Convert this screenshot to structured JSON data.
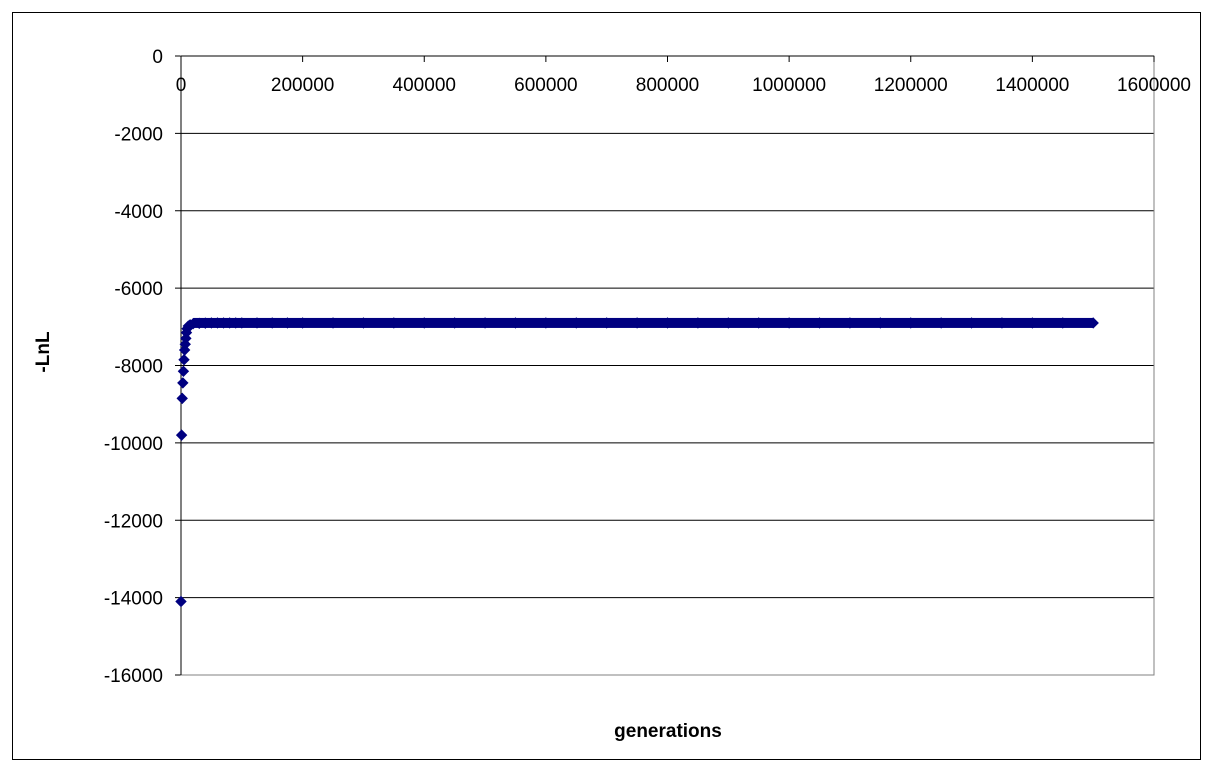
{
  "chart_data": {
    "type": "scatter",
    "title": "",
    "xlabel": "generations",
    "ylabel": "-LnL",
    "xlim": [
      0,
      1600000
    ],
    "ylim": [
      -16000,
      0
    ],
    "x_ticks": [
      0,
      200000,
      400000,
      600000,
      800000,
      1000000,
      1200000,
      1400000,
      1600000
    ],
    "x_tick_labels": [
      "0",
      "200000",
      "400000",
      "600000",
      "800000",
      "1000000",
      "1200000",
      "1400000",
      "1600000"
    ],
    "y_ticks": [
      0,
      -2000,
      -4000,
      -6000,
      -8000,
      -10000,
      -12000,
      -14000,
      -16000
    ],
    "y_tick_labels": [
      "0",
      "-2000",
      "-4000",
      "-6000",
      "-8000",
      "-10000",
      "-12000",
      "-14000",
      "-16000"
    ],
    "x_axis_position": "top",
    "grid": "horizontal",
    "legend": "none",
    "marker": "diamond",
    "marker_color": "#000080",
    "series": [
      {
        "x": [
          0,
          1000,
          2000,
          3000,
          4000,
          5000,
          6000,
          7000,
          8000,
          9000,
          10000,
          12000,
          15000,
          20000,
          30000,
          40000,
          50000,
          60000,
          70000,
          80000,
          90000,
          100000,
          125000,
          150000,
          175000,
          200000,
          250000,
          300000,
          350000,
          400000,
          450000,
          500000,
          550000,
          600000,
          650000,
          700000,
          750000,
          800000,
          850000,
          900000,
          950000,
          1000000,
          1050000,
          1100000,
          1150000,
          1200000,
          1250000,
          1300000,
          1350000,
          1400000,
          1450000,
          1500000
        ],
        "y": [
          -14100,
          -9800,
          -8850,
          -8450,
          -8150,
          -7850,
          -7600,
          -7450,
          -7300,
          -7150,
          -7050,
          -6980,
          -6950,
          -6920,
          -6910,
          -6905,
          -6900,
          -6900,
          -6900,
          -6900,
          -6900,
          -6900,
          -6900,
          -6900,
          -6900,
          -6900,
          -6900,
          -6900,
          -6900,
          -6900,
          -6900,
          -6900,
          -6900,
          -6900,
          -6900,
          -6900,
          -6900,
          -6900,
          -6900,
          -6900,
          -6900,
          -6900,
          -6900,
          -6900,
          -6900,
          -6900,
          -6900,
          -6900,
          -6900,
          -6900,
          -6900,
          -6900
        ]
      }
    ]
  }
}
